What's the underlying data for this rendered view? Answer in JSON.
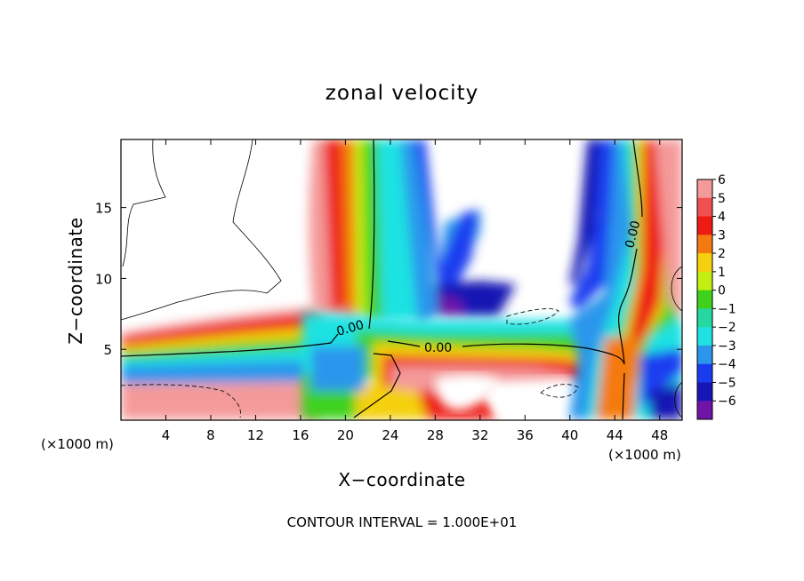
{
  "figure": {
    "title": "zonal velocity",
    "xlabel": "X−coordinate",
    "ylabel": "Z−coordinate",
    "x_unit_left": "(×1000 m)",
    "x_unit_right": "(×1000 m)",
    "footer": "CONTOUR INTERVAL = 1.000E+01"
  },
  "chart_data": {
    "type": "heatmap",
    "title": "zonal velocity",
    "xlabel": "X−coordinate",
    "ylabel": "Z−coordinate",
    "x_unit": "(×1000 m)",
    "xlim": [
      0,
      50
    ],
    "ylim": [
      0,
      19.8
    ],
    "x_ticks": [
      4,
      8,
      12,
      16,
      20,
      24,
      28,
      32,
      36,
      40,
      44,
      48
    ],
    "y_ticks": [
      5,
      10,
      15
    ],
    "colorbar": {
      "levels": [
        6,
        5,
        4,
        3,
        2,
        1,
        0,
        -1,
        -2,
        -3,
        -4,
        -5,
        -6
      ],
      "labels": [
        "6",
        "5",
        "4",
        "3",
        "2",
        "1",
        "0",
        "−1",
        "−2",
        "−3",
        "−4",
        "−5",
        "−6"
      ],
      "colors": [
        "#f49a9a",
        "#f05050",
        "#ee1a14",
        "#f47a10",
        "#f4d010",
        "#c4ee12",
        "#3ed21c",
        "#24d8a0",
        "#1ee2e2",
        "#2c96ec",
        "#1a3cf0",
        "#1616b4",
        "#7014a8"
      ]
    },
    "contour_labels": [
      {
        "text": "0.00",
        "x": 17.5,
        "z": 6.7
      },
      {
        "text": "0.00",
        "x": 28.4,
        "z": 5.3
      },
      {
        "text": "0.00",
        "x": 45.8,
        "z": 13.2
      }
    ],
    "contour_interval": "1.000E+01"
  }
}
